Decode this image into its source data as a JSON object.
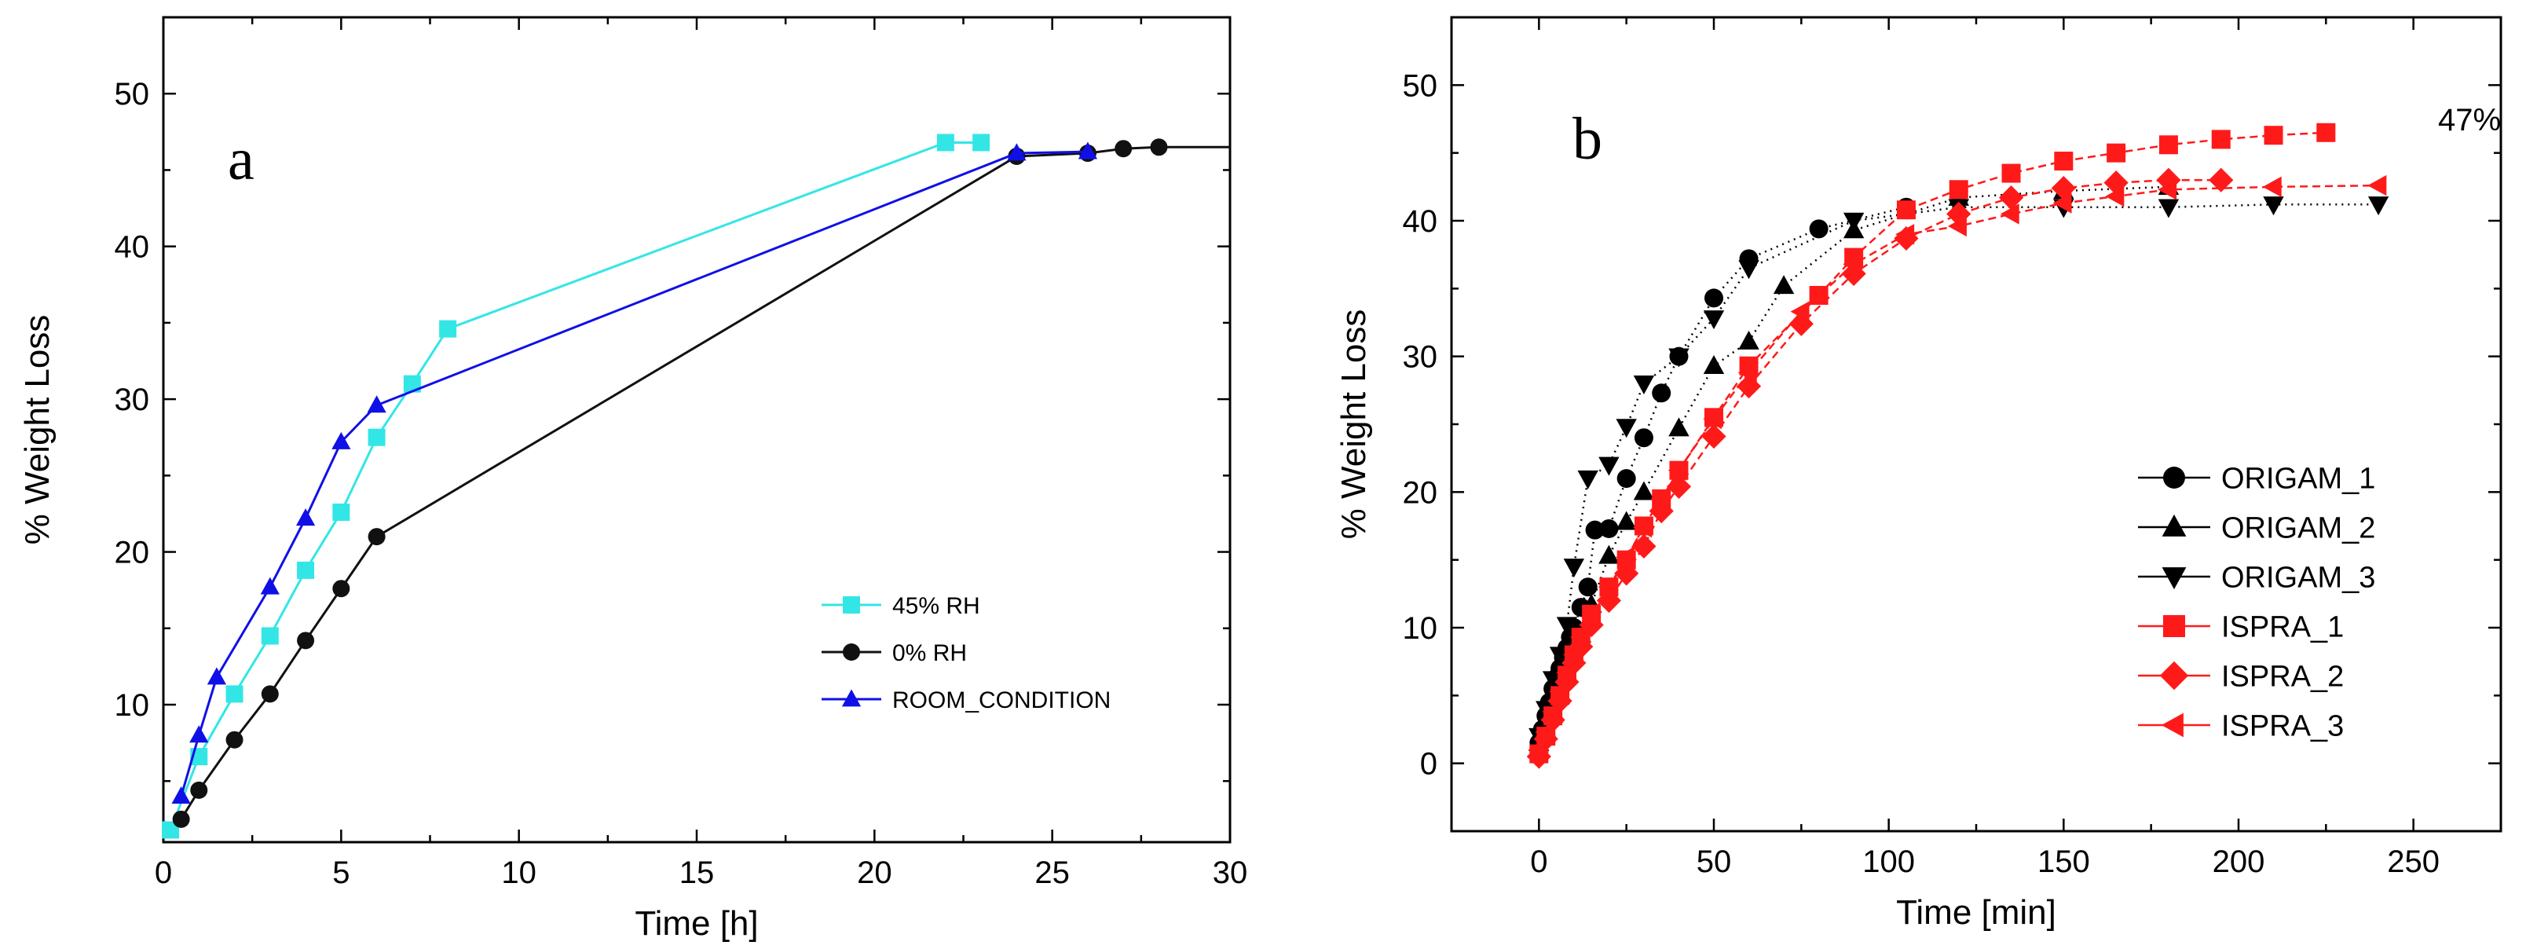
{
  "chart_data": [
    {
      "type": "line",
      "panel_label": "a",
      "xlabel": "Time [h]",
      "ylabel": "% Weight Loss",
      "xlim": [
        0,
        30
      ],
      "ylim": [
        1,
        55
      ],
      "xticks": [
        0,
        5,
        10,
        15,
        20,
        25,
        30
      ],
      "yticks": [
        10,
        20,
        30,
        40,
        50
      ],
      "legend_position": "bottom-right",
      "series": [
        {
          "name": "45% RH",
          "color": "#33e6e6",
          "marker": "square",
          "x": [
            0.2,
            1,
            2,
            3,
            4,
            5,
            6,
            7,
            8,
            22,
            23
          ],
          "y": [
            1.8,
            6.6,
            10.7,
            14.5,
            18.8,
            22.6,
            27.5,
            31,
            34.6,
            46.8,
            46.8
          ]
        },
        {
          "name": "0% RH",
          "color": "#111111",
          "marker": "circle",
          "x": [
            0.5,
            1,
            2,
            3,
            4,
            5,
            6,
            24,
            26,
            27,
            28
          ],
          "y": [
            2.5,
            4.4,
            7.7,
            10.7,
            14.2,
            17.6,
            21,
            45.9,
            46.1,
            46.4,
            46.5
          ],
          "extend_to_x": 30
        },
        {
          "name": "ROOM_CONDITION",
          "color": "#1010e6",
          "marker": "triangle-up",
          "x": [
            0.5,
            1,
            1.5,
            3,
            4,
            5,
            6,
            24,
            26
          ],
          "y": [
            4,
            8,
            11.8,
            17.7,
            22.2,
            27.2,
            29.6,
            46.1,
            46.2
          ]
        }
      ]
    },
    {
      "type": "line",
      "panel_label": "b",
      "xlabel": "Time [min]",
      "ylabel": "% Weight Loss",
      "xlim": [
        -25,
        275
      ],
      "ylim": [
        -5,
        55
      ],
      "xticks": [
        0,
        50,
        100,
        150,
        200,
        250
      ],
      "yticks": [
        0,
        10,
        20,
        30,
        40,
        50
      ],
      "annotation": "47%",
      "legend_position": "center-right",
      "series": [
        {
          "name": "ORIGAM_1",
          "color": "#000000",
          "marker": "circle",
          "x": [
            0,
            1,
            2,
            3,
            4,
            5,
            6,
            7,
            8,
            9,
            10,
            12,
            14,
            16,
            20,
            25,
            30,
            35,
            40,
            50,
            60,
            80,
            105
          ],
          "y": [
            1.5,
            2.5,
            3.5,
            4.5,
            5.5,
            6.3,
            7,
            7.8,
            8.5,
            9.3,
            10,
            11.5,
            13,
            17.2,
            17.3,
            21,
            24,
            27.3,
            30,
            34.3,
            37.2,
            39.4,
            41
          ]
        },
        {
          "name": "ORIGAM_2",
          "color": "#000000",
          "marker": "triangle-up",
          "x": [
            0,
            2,
            4,
            6,
            8,
            10,
            12,
            15,
            20,
            25,
            30,
            40,
            50,
            60,
            70,
            90,
            120,
            150,
            180
          ],
          "y": [
            1.5,
            2.5,
            3.6,
            5,
            6.5,
            8,
            9.5,
            11.7,
            15.3,
            17.8,
            20,
            24.7,
            29.3,
            31.1,
            35.2,
            39.3,
            41.7,
            42.2,
            42.5
          ]
        },
        {
          "name": "ORIGAM_3",
          "color": "#000000",
          "marker": "triangle-down",
          "x": [
            0,
            2,
            4,
            6,
            8,
            10,
            14,
            20,
            25,
            30,
            40,
            50,
            60,
            90,
            120,
            150,
            180,
            210,
            240
          ],
          "y": [
            2,
            4,
            6.2,
            8,
            10.2,
            14.5,
            21,
            22,
            24.8,
            28,
            30,
            32.8,
            36.5,
            40,
            41,
            41,
            41,
            41.2,
            41.2
          ]
        },
        {
          "name": "ISPRA_1",
          "color": "#ff1a1a",
          "marker": "square",
          "x": [
            0,
            2,
            4,
            6,
            8,
            10,
            12,
            15,
            20,
            25,
            30,
            35,
            40,
            50,
            60,
            80,
            90,
            105,
            120,
            135,
            150,
            165,
            180,
            195,
            210,
            225
          ],
          "y": [
            0.7,
            2,
            3.5,
            5,
            6.5,
            8,
            9.3,
            11,
            13,
            15,
            17.5,
            19.5,
            21.6,
            25.5,
            29.3,
            34.5,
            37.3,
            40.8,
            42.3,
            43.5,
            44.4,
            45,
            45.6,
            46,
            46.3,
            46.5
          ]
        },
        {
          "name": "ISPRA_2",
          "color": "#ff1a1a",
          "marker": "diamond",
          "x": [
            0,
            2,
            4,
            6,
            8,
            10,
            12,
            15,
            20,
            25,
            30,
            35,
            40,
            50,
            60,
            75,
            90,
            105,
            120,
            135,
            150,
            165,
            180,
            195
          ],
          "y": [
            0.5,
            1.8,
            3.2,
            4.6,
            6,
            7.4,
            8.6,
            10.2,
            12,
            14,
            16,
            18.6,
            20.4,
            24.1,
            27.8,
            32.4,
            36.1,
            38.7,
            40.5,
            41.7,
            42.4,
            42.8,
            43,
            43
          ]
        },
        {
          "name": "ISPRA_3",
          "color": "#ff1a1a",
          "marker": "triangle-left",
          "x": [
            0,
            2,
            4,
            6,
            8,
            10,
            12,
            15,
            20,
            25,
            30,
            35,
            40,
            50,
            60,
            75,
            90,
            105,
            120,
            135,
            150,
            165,
            180,
            210,
            240
          ],
          "y": [
            1,
            2.3,
            3.8,
            5.3,
            6.7,
            8,
            9.3,
            10.8,
            13,
            15.2,
            17.4,
            19.5,
            21.6,
            25.4,
            28.8,
            33.3,
            36.8,
            39,
            39.6,
            40.5,
            41.3,
            41.8,
            42.3,
            42.5,
            42.6
          ]
        }
      ]
    }
  ]
}
